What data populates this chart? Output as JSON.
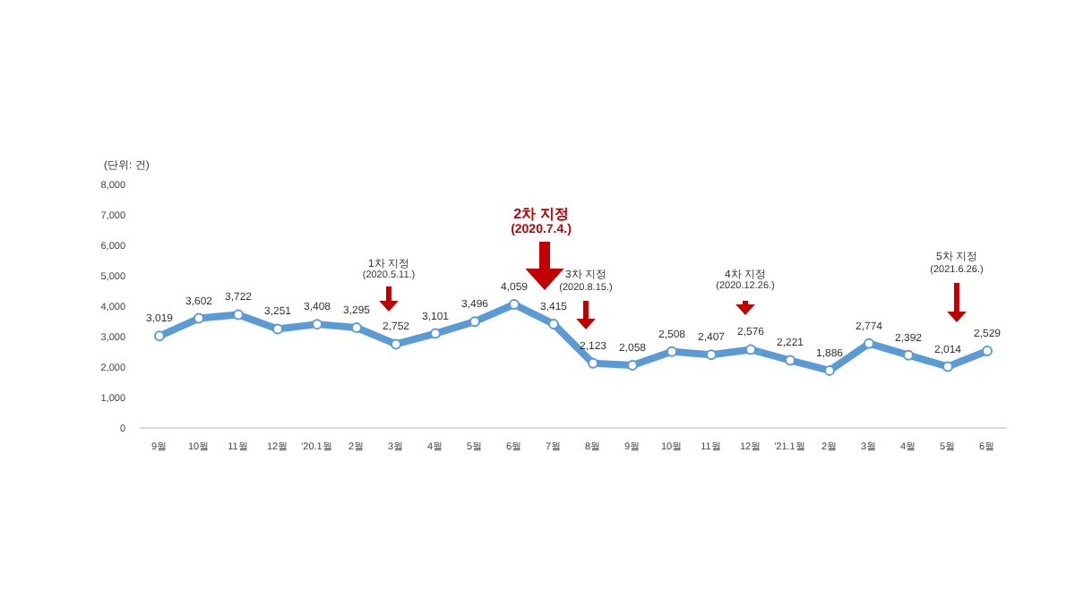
{
  "chart_data": {
    "type": "line",
    "categories": [
      "9월",
      "10월",
      "11월",
      "12월",
      "'20.1월",
      "2월",
      "3월",
      "4월",
      "5월",
      "6월",
      "7월",
      "8월",
      "9월",
      "10월",
      "11월",
      "12월",
      "'21.1월",
      "2월",
      "3월",
      "4월",
      "5월",
      "6월"
    ],
    "series": [
      {
        "color": "#5b9bd5",
        "values": [
          3019,
          3602,
          3722,
          3251,
          3408,
          3295,
          2752,
          3101,
          3496,
          4059,
          3415,
          2123,
          2058,
          2508,
          2407,
          2576,
          2221,
          1886,
          2774,
          2392,
          2014,
          2529
        ],
        "value_labels": [
          "3,019",
          "3,602",
          "3,722",
          "3,251",
          "3,408",
          "3,295",
          "2,752",
          "3,101",
          "3,496",
          "4,059",
          "3,415",
          "2,123",
          "2,058",
          "2,508",
          "2,407",
          "2,576",
          "2,221",
          "1,886",
          "2,774",
          "2,392",
          "2,014",
          "2,529"
        ]
      }
    ],
    "ylim": [
      0,
      8000
    ],
    "yticks": [
      0,
      {
        "value": 1000,
        "label": "1,000"
      },
      {
        "value": 2000,
        "label": "2,000"
      },
      {
        "value": 3000,
        "label": "3,000"
      },
      {
        "value": 4000,
        "label": "4,000"
      },
      {
        "value": 5000,
        "label": "5,000"
      },
      {
        "value": 6000,
        "label": "6,000"
      },
      {
        "value": 7000,
        "label": "7,000"
      },
      {
        "value": 8000,
        "label": "8,000"
      }
    ],
    "marker": "circle",
    "line_style": "solid",
    "annotations": [
      "(단위: 건)",
      "1차 지정",
      "(2020.5.11.)",
      "2차 지정",
      "(2020.7.4.)",
      "3차 지정",
      "(2020.8.15.)",
      "4차 지정",
      "(2020.12.26.)",
      "5차 지정",
      "(2021.6.26.)"
    ]
  }
}
